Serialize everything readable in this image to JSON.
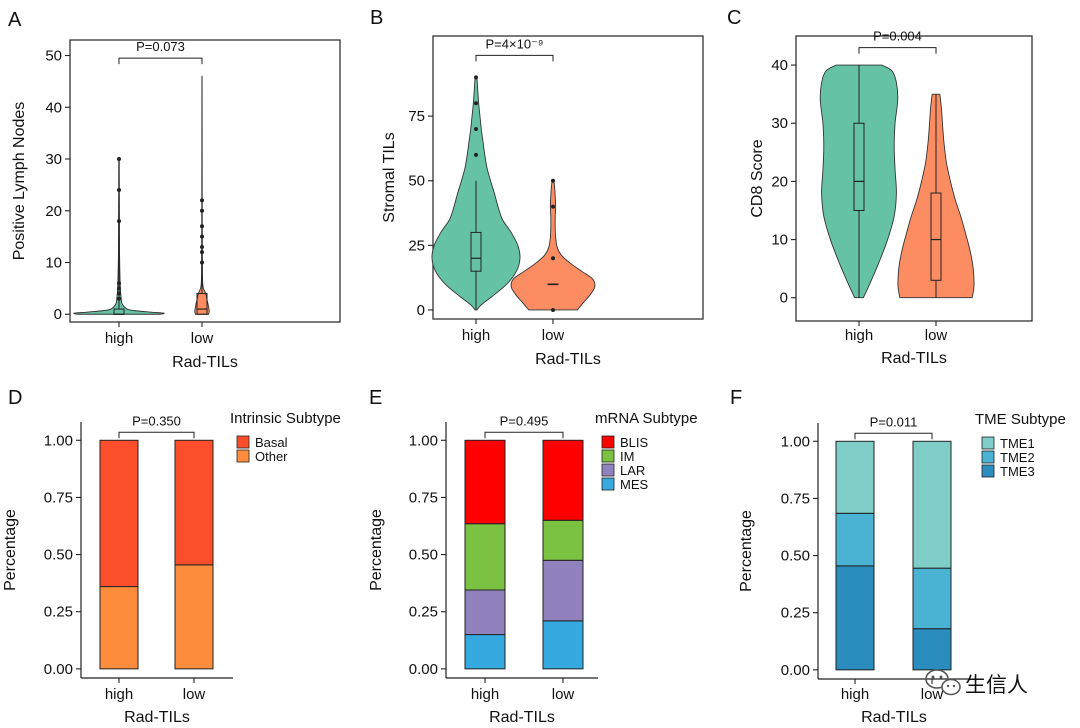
{
  "chart_data": [
    {
      "id": "A",
      "type": "violin",
      "letter": "A",
      "title": "",
      "ylabel": "Positive Lymph Nodes",
      "xlabel": "Rad-TILs",
      "categories": [
        "high",
        "low"
      ],
      "ylim": [
        -1.5,
        53
      ],
      "yticks": [
        0,
        10,
        20,
        30,
        40,
        50
      ],
      "y_tick_labels": [
        "0",
        "10",
        "20",
        "30",
        "40",
        "50"
      ],
      "colors": [
        "#66c2a5",
        "#fc8d62"
      ],
      "pvalue": "P=0.073",
      "bracket_y": 49.5,
      "violins": [
        {
          "profile": [
            [
              0,
              0.92
            ],
            [
              0.2,
              1
            ],
            [
              0.4,
              0.72
            ],
            [
              0.7,
              0.35
            ],
            [
              1,
              0.18
            ],
            [
              2,
              0.07
            ],
            [
              3,
              0.05
            ],
            [
              5,
              0.03
            ],
            [
              8,
              0.02
            ],
            [
              12,
              0.012
            ],
            [
              18,
              0.01
            ],
            [
              24,
              0.007
            ],
            [
              30,
              0.005
            ]
          ],
          "halfwidth": 45
        },
        {
          "profile": [
            [
              0,
              0.55
            ],
            [
              0.5,
              0.6
            ],
            [
              1,
              0.58
            ],
            [
              2,
              0.5
            ],
            [
              3,
              0.4
            ],
            [
              4,
              0.3
            ],
            [
              5,
              0.12
            ],
            [
              6,
              0.06
            ],
            [
              8,
              0.04
            ],
            [
              12,
              0.03
            ],
            [
              18,
              0.02
            ],
            [
              24,
              0.015
            ],
            [
              30,
              0.012
            ],
            [
              36,
              0.009
            ],
            [
              41,
              0.007
            ],
            [
              46,
              0.005
            ]
          ],
          "halfwidth": 12
        }
      ],
      "boxes": [
        {
          "q1": 0,
          "median": 0,
          "q3": 1,
          "whisker_low": 0,
          "whisker_high": 30
        },
        {
          "q1": 0,
          "median": 1,
          "q3": 4,
          "whisker_low": 0,
          "whisker_high": 46
        }
      ],
      "outliers": [
        [
          3,
          4,
          5,
          6,
          18,
          24,
          30
        ],
        [
          10,
          12,
          13,
          15,
          17,
          20,
          22
        ]
      ]
    },
    {
      "id": "B",
      "type": "violin",
      "letter": "B",
      "title": "",
      "ylabel": "Stromal TILs",
      "xlabel": "Rad-TILs",
      "categories": [
        "high",
        "low"
      ],
      "ylim": [
        -3.5,
        106
      ],
      "yticks": [
        0,
        25,
        50,
        75
      ],
      "y_tick_labels": [
        "0",
        "25",
        "50",
        "75"
      ],
      "colors": [
        "#66c2a5",
        "#fc8d62"
      ],
      "pvalue": "P=4×10⁻⁹",
      "bracket_y": 98.5,
      "violins": [
        {
          "profile": [
            [
              0,
              0.02
            ],
            [
              2,
              0.12
            ],
            [
              5,
              0.35
            ],
            [
              10,
              0.7
            ],
            [
              15,
              0.92
            ],
            [
              20,
              1.0
            ],
            [
              25,
              0.95
            ],
            [
              30,
              0.8
            ],
            [
              35,
              0.6
            ],
            [
              40,
              0.5
            ],
            [
              45,
              0.42
            ],
            [
              50,
              0.33
            ],
            [
              55,
              0.25
            ],
            [
              60,
              0.2
            ],
            [
              65,
              0.16
            ],
            [
              70,
              0.12
            ],
            [
              75,
              0.09
            ],
            [
              80,
              0.06
            ],
            [
              85,
              0.04
            ],
            [
              90,
              0.02
            ]
          ],
          "halfwidth": 44
        },
        {
          "profile": [
            [
              0,
              0.55
            ],
            [
              3,
              0.7
            ],
            [
              6,
              0.85
            ],
            [
              9,
              0.95
            ],
            [
              12,
              0.9
            ],
            [
              15,
              0.65
            ],
            [
              18,
              0.4
            ],
            [
              21,
              0.2
            ],
            [
              24,
              0.1
            ],
            [
              28,
              0.06
            ],
            [
              32,
              0.05
            ],
            [
              36,
              0.05
            ],
            [
              40,
              0.06
            ],
            [
              44,
              0.05
            ],
            [
              47,
              0.04
            ],
            [
              50,
              0.02
            ]
          ],
          "halfwidth": 44
        }
      ],
      "boxes": [
        {
          "q1": 15,
          "median": 20,
          "q3": 30,
          "whisker_low": 0,
          "whisker_high": 50
        },
        {
          "q1": 10,
          "median": 10,
          "q3": 10,
          "whisker_low": 10,
          "whisker_high": 10
        }
      ],
      "outliers": [
        [
          60,
          70,
          80,
          90
        ],
        [
          0,
          20,
          40,
          50
        ]
      ]
    },
    {
      "id": "C",
      "type": "violin",
      "letter": "C",
      "title": "",
      "ylabel": "CD8 Score",
      "xlabel": "Rad-TILs",
      "categories": [
        "high",
        "low"
      ],
      "ylim": [
        -4,
        45
      ],
      "yticks": [
        0,
        10,
        20,
        30,
        40
      ],
      "y_tick_labels": [
        "0",
        "10",
        "20",
        "30",
        "40"
      ],
      "colors": [
        "#66c2a5",
        "#fc8d62"
      ],
      "pvalue": "P=0.004",
      "bracket_y": 43,
      "violins": [
        {
          "profile": [
            [
              0,
              0.1
            ],
            [
              3,
              0.28
            ],
            [
              6,
              0.45
            ],
            [
              10,
              0.65
            ],
            [
              14,
              0.8
            ],
            [
              18,
              0.85
            ],
            [
              22,
              0.82
            ],
            [
              26,
              0.8
            ],
            [
              30,
              0.82
            ],
            [
              34,
              0.88
            ],
            [
              37,
              0.85
            ],
            [
              39,
              0.75
            ],
            [
              40,
              0.52
            ]
          ],
          "halfwidth": 44
        },
        {
          "profile": [
            [
              0,
              0.95
            ],
            [
              2,
              1.0
            ],
            [
              5,
              0.98
            ],
            [
              8,
              0.9
            ],
            [
              11,
              0.78
            ],
            [
              14,
              0.65
            ],
            [
              17,
              0.5
            ],
            [
              20,
              0.38
            ],
            [
              23,
              0.28
            ],
            [
              26,
              0.22
            ],
            [
              29,
              0.18
            ],
            [
              32,
              0.15
            ],
            [
              34,
              0.12
            ],
            [
              35,
              0.1
            ]
          ],
          "halfwidth": 38
        }
      ],
      "boxes": [
        {
          "q1": 15,
          "median": 20,
          "q3": 30,
          "whisker_low": 0,
          "whisker_high": 40
        },
        {
          "q1": 3,
          "median": 10,
          "q3": 18,
          "whisker_low": 0,
          "whisker_high": 35
        }
      ],
      "outliers": [
        [],
        []
      ]
    },
    {
      "id": "D",
      "type": "stacked_bar",
      "letter": "D",
      "title": "",
      "ylabel": "Percentage",
      "xlabel": "Rad-TILs",
      "categories": [
        "high",
        "low"
      ],
      "ylim": [
        -0.04,
        1.08
      ],
      "yticks": [
        0,
        0.25,
        0.5,
        0.75,
        1.0
      ],
      "y_tick_labels": [
        "0.00",
        "0.25",
        "0.50",
        "0.75",
        "1.00"
      ],
      "pvalue": "P=0.350",
      "legend_title": "Intrinsic Subtype",
      "legend_position": "right",
      "series": [
        {
          "name": "Basal",
          "color": "#fc4e2a",
          "values": [
            0.64,
            0.545
          ]
        },
        {
          "name": "Other",
          "color": "#fd8d3c",
          "values": [
            0.36,
            0.455
          ]
        }
      ],
      "stack_from_bottom": [
        "Other",
        "Basal"
      ]
    },
    {
      "id": "E",
      "type": "stacked_bar",
      "letter": "E",
      "title": "",
      "ylabel": "Percentage",
      "xlabel": "Rad-TILs",
      "categories": [
        "high",
        "low"
      ],
      "ylim": [
        -0.04,
        1.08
      ],
      "yticks": [
        0,
        0.25,
        0.5,
        0.75,
        1.0
      ],
      "y_tick_labels": [
        "0.00",
        "0.25",
        "0.50",
        "0.75",
        "1.00"
      ],
      "pvalue": "P=0.495",
      "legend_title": "mRNA Subtype",
      "legend_position": "right",
      "series": [
        {
          "name": "BLIS",
          "color": "#ff0000",
          "values": [
            0.365,
            0.35
          ]
        },
        {
          "name": "IM",
          "color": "#7cc242",
          "values": [
            0.29,
            0.175
          ]
        },
        {
          "name": "LAR",
          "color": "#9181bd",
          "values": [
            0.195,
            0.265
          ]
        },
        {
          "name": "MES",
          "color": "#36a9e1",
          "values": [
            0.15,
            0.21
          ]
        }
      ],
      "stack_from_bottom": [
        "MES",
        "LAR",
        "IM",
        "BLIS"
      ]
    },
    {
      "id": "F",
      "type": "stacked_bar",
      "letter": "F",
      "title": "",
      "ylabel": "Percentage",
      "xlabel": "Rad-TILs",
      "categories": [
        "high",
        "low"
      ],
      "ylim": [
        -0.04,
        1.08
      ],
      "yticks": [
        0,
        0.25,
        0.5,
        0.75,
        1.0
      ],
      "y_tick_labels": [
        "0.00",
        "0.25",
        "0.50",
        "0.75",
        "1.00"
      ],
      "pvalue": "P=0.011",
      "legend_title": "TME Subtype",
      "legend_position": "right",
      "series": [
        {
          "name": "TME1",
          "color": "#7ecdc6",
          "values": [
            0.315,
            0.555
          ]
        },
        {
          "name": "TME2",
          "color": "#4ab3d3",
          "values": [
            0.23,
            0.265
          ]
        },
        {
          "name": "TME3",
          "color": "#2b8cbe",
          "values": [
            0.455,
            0.18
          ]
        }
      ],
      "stack_from_bottom": [
        "TME3",
        "TME2",
        "TME1"
      ]
    }
  ],
  "watermark": {
    "icon": "wechat-icon",
    "text": "生信人"
  }
}
